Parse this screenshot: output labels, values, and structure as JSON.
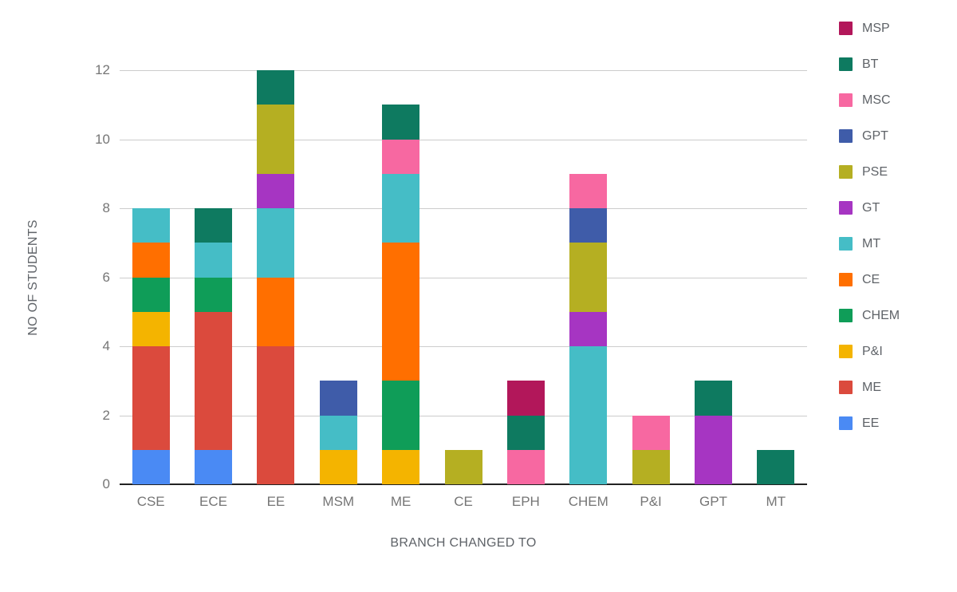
{
  "chart_data": {
    "type": "bar",
    "stacked": true,
    "xlabel": "BRANCH CHANGED TO",
    "ylabel": "NO OF STUDENTS",
    "categories": [
      "CSE",
      "ECE",
      "EE",
      "MSM",
      "ME",
      "CE",
      "EPH",
      "CHEM",
      "P&I",
      "GPT",
      "MT"
    ],
    "y_ticks": [
      0,
      2,
      4,
      6,
      8,
      10,
      12
    ],
    "ylim": [
      0,
      12
    ],
    "grid": true,
    "legend_position": "right",
    "legend_order_top_to_bottom": [
      "MSP",
      "BT",
      "MSC",
      "GPT",
      "PSE",
      "GT",
      "MT",
      "CE",
      "CHEM",
      "P&I",
      "ME",
      "EE"
    ],
    "series": [
      {
        "name": "EE",
        "color": "#4a8af4",
        "values": [
          1,
          1,
          0,
          0,
          0,
          0,
          0,
          0,
          0,
          0,
          0
        ]
      },
      {
        "name": "ME",
        "color": "#db4a3d",
        "values": [
          3,
          4,
          4,
          0,
          0,
          0,
          0,
          0,
          0,
          0,
          0
        ]
      },
      {
        "name": "P&I",
        "color": "#f4b400",
        "values": [
          1,
          0,
          0,
          1,
          1,
          0,
          0,
          0,
          0,
          0,
          0
        ]
      },
      {
        "name": "CHEM",
        "color": "#0f9d58",
        "values": [
          1,
          1,
          0,
          0,
          2,
          0,
          0,
          0,
          0,
          0,
          0
        ]
      },
      {
        "name": "CE",
        "color": "#ff6f00",
        "values": [
          1,
          0,
          2,
          0,
          4,
          0,
          0,
          0,
          0,
          0,
          0
        ]
      },
      {
        "name": "MT",
        "color": "#45bdc6",
        "values": [
          1,
          1,
          2,
          1,
          2,
          0,
          0,
          4,
          0,
          0,
          0
        ]
      },
      {
        "name": "GT",
        "color": "#a635c2",
        "values": [
          0,
          0,
          1,
          0,
          0,
          0,
          0,
          1,
          0,
          2,
          0
        ]
      },
      {
        "name": "PSE",
        "color": "#b5af22",
        "values": [
          0,
          0,
          2,
          0,
          0,
          1,
          0,
          2,
          1,
          0,
          0
        ]
      },
      {
        "name": "GPT",
        "color": "#3f5ca9",
        "values": [
          0,
          0,
          0,
          1,
          0,
          0,
          0,
          1,
          0,
          0,
          0
        ]
      },
      {
        "name": "MSC",
        "color": "#f768a1",
        "values": [
          0,
          0,
          0,
          0,
          1,
          0,
          1,
          1,
          1,
          0,
          0
        ]
      },
      {
        "name": "BT",
        "color": "#0e7a60",
        "values": [
          0,
          1,
          1,
          0,
          1,
          0,
          1,
          0,
          0,
          1,
          1
        ]
      },
      {
        "name": "MSP",
        "color": "#b2175a",
        "values": [
          0,
          0,
          0,
          0,
          0,
          0,
          1,
          0,
          0,
          0,
          0
        ]
      }
    ]
  }
}
